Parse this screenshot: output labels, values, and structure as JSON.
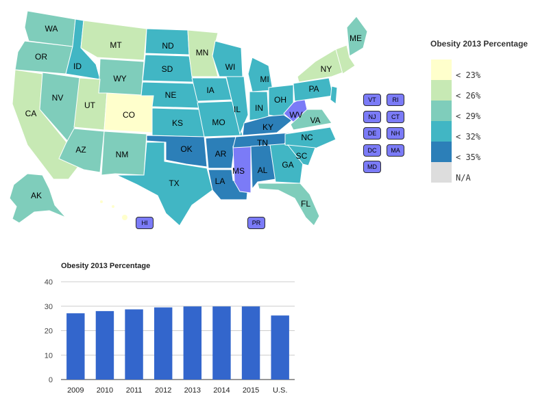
{
  "legend": {
    "title": "Obesity 2013 Percentage",
    "items": [
      {
        "label": "< 23%",
        "color": "#ffffcc"
      },
      {
        "label": "< 26%",
        "color": "#c7e9b4"
      },
      {
        "label": "< 29%",
        "color": "#7fcdbb"
      },
      {
        "label": "< 32%",
        "color": "#41b6c4"
      },
      {
        "label": "< 35%",
        "color": "#2c7fb8"
      },
      {
        "label": "N/A",
        "color": "#dddddd"
      }
    ]
  },
  "highlight_color": "#7b7bf7",
  "map_states": [
    "WA",
    "OR",
    "CA",
    "ID",
    "NV",
    "MT",
    "WY",
    "UT",
    "AZ",
    "CO",
    "NM",
    "ND",
    "SD",
    "NE",
    "KS",
    "OK",
    "TX",
    "MN",
    "IA",
    "MO",
    "AR",
    "LA",
    "WI",
    "IL",
    "MS",
    "MI",
    "IN",
    "KY",
    "TN",
    "AL",
    "OH",
    "GA",
    "FL",
    "WV",
    "VA",
    "NC",
    "SC",
    "PA",
    "NY",
    "ME",
    "AK"
  ],
  "small_states": [
    "VT",
    "RI",
    "NJ",
    "CT",
    "DE",
    "NH",
    "DC",
    "MA",
    "MD"
  ],
  "territories": [
    "HI",
    "PR"
  ],
  "chart_data": {
    "type": "bar",
    "title": "Obesity 2013 Percentage",
    "categories": [
      "2009",
      "2010",
      "2011",
      "2012",
      "2013",
      "2014",
      "2015",
      "U.S."
    ],
    "values": [
      27.1,
      28.0,
      28.7,
      29.5,
      29.9,
      29.9,
      29.9,
      26.2
    ],
    "ylim": [
      0,
      40
    ],
    "yticks": [
      0,
      10,
      20,
      30,
      40
    ],
    "color": "#3366cc",
    "grid": true
  }
}
